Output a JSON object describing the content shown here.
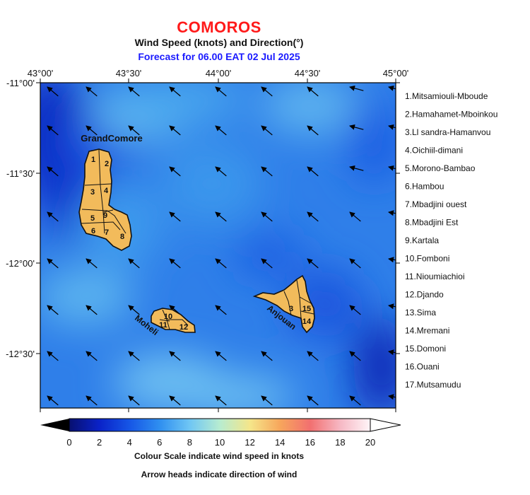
{
  "title": "COMOROS",
  "subtitle": "Wind Speed (knots) and Direction(°)",
  "forecast_line": "Forecast for  06.00 EAT 02 Jul 2025",
  "colorbar": {
    "ticks": [
      "0",
      "2",
      "4",
      "6",
      "8",
      "10",
      "12",
      "14",
      "16",
      "18",
      "20"
    ],
    "note1": "Colour Scale indicate wind speed in knots",
    "note2": "Arrow heads indicate direction of wind"
  },
  "axes": {
    "lon_labels": [
      "43°00'",
      "43°30'",
      "44°00'",
      "44°30'",
      "45°00'"
    ],
    "lat_labels": [
      "-11°00'",
      "-11°30'",
      "-12°00'",
      "-12°30'"
    ]
  },
  "island_labels": [
    "GrandComore",
    "Moheli",
    "Anjouan"
  ],
  "region_numbers": [
    "1",
    "2",
    "3",
    "4",
    "5",
    "6",
    "7",
    "8",
    "9",
    "10",
    "11",
    "12",
    "3",
    "15",
    "14"
  ],
  "legend": [
    "1.Mitsamiouli-Mboude",
    "2.Hamahamet-Mboinkou",
    "3.Ll sandra-Hamanvou",
    "4.Oichiil-dimani",
    "5.Morono-Bambao",
    "6.Hambou",
    "7.Mbadjini ouest",
    "8.Mbadjini Est",
    "9.Kartala",
    "10.Fomboni",
    "11.Nioumiachioi",
    "12.Djando",
    "13.Sima",
    "14.Mremani",
    "15.Domoni",
    "16.Ouani",
    "17.Mutsamudu"
  ],
  "colors": {
    "title": "#ff1a1a",
    "forecast": "#1a1aff",
    "island_fill": "#f2bb5b",
    "sea_base": "#2f7de8"
  }
}
